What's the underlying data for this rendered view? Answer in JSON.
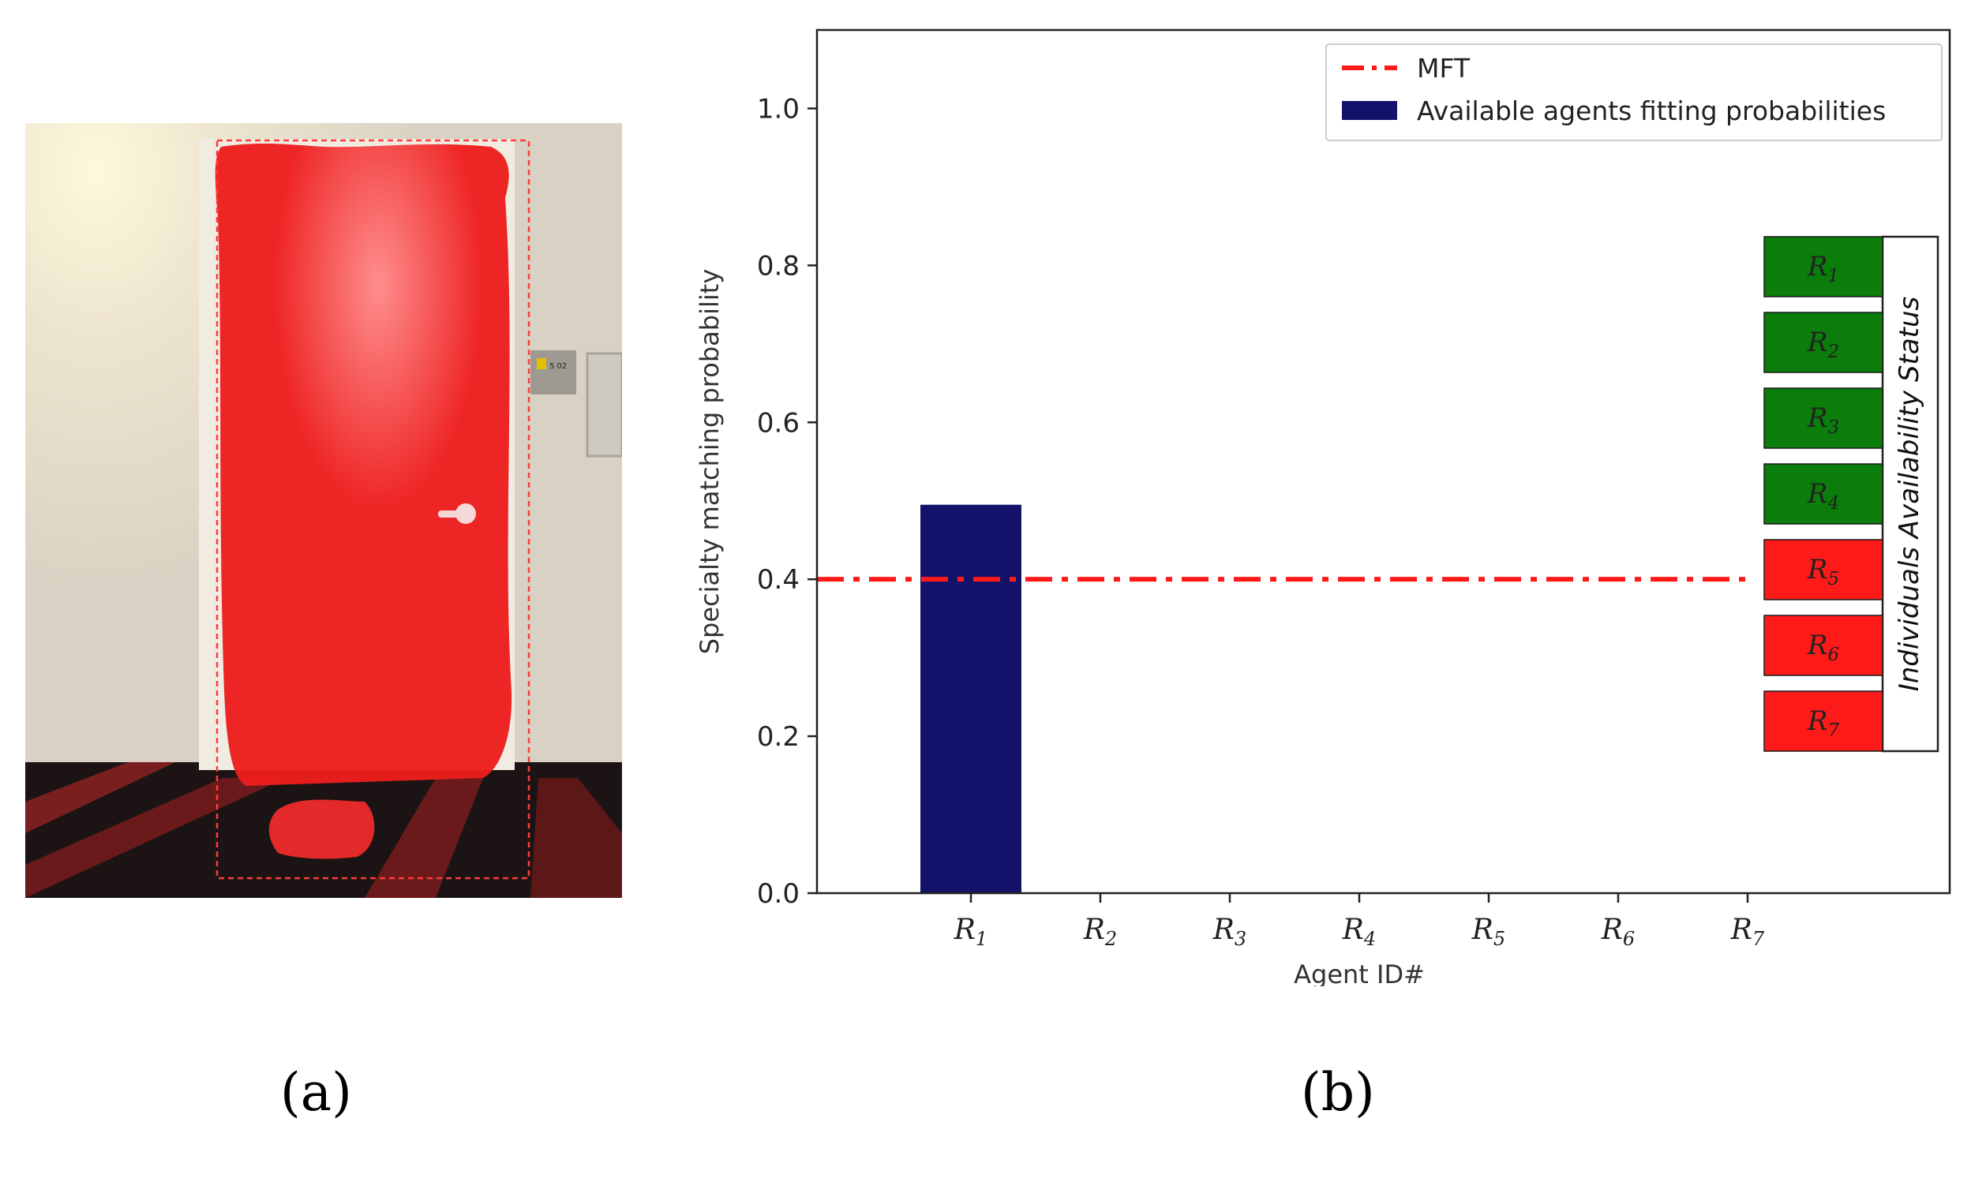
{
  "panels": {
    "a_label": "(a)",
    "b_label": "(b)"
  },
  "photo": {
    "door_sign_text": "5 02"
  },
  "chart_data": {
    "type": "bar",
    "categories": [
      "R1",
      "R2",
      "R3",
      "R4",
      "R5",
      "R6",
      "R7"
    ],
    "category_labels": [
      {
        "base": "R",
        "sub": "1"
      },
      {
        "base": "R",
        "sub": "2"
      },
      {
        "base": "R",
        "sub": "3"
      },
      {
        "base": "R",
        "sub": "4"
      },
      {
        "base": "R",
        "sub": "5"
      },
      {
        "base": "R",
        "sub": "6"
      },
      {
        "base": "R",
        "sub": "7"
      }
    ],
    "series": [
      {
        "name": "Available agents fitting probabilities",
        "values": [
          0.495,
          0,
          0,
          0,
          0,
          0,
          0
        ],
        "color": "#12126b"
      }
    ],
    "threshold": {
      "name": "MFT",
      "value": 0.4,
      "color": "#ff1a1a",
      "style": "dash-dot"
    },
    "xlabel": "Agent ID#",
    "ylabel": "Specialty matching probability",
    "ylim": [
      0,
      1.1
    ],
    "yticks": [
      0.0,
      0.2,
      0.4,
      0.6,
      0.8,
      1.0
    ],
    "grid": false,
    "legend_position": "top-right",
    "status_panel": {
      "title": "Individuals Availability Status",
      "items": [
        {
          "base": "R",
          "sub": "1",
          "status": "available",
          "color": "#0a7d0a"
        },
        {
          "base": "R",
          "sub": "2",
          "status": "available",
          "color": "#0a7d0a"
        },
        {
          "base": "R",
          "sub": "3",
          "status": "available",
          "color": "#0a7d0a"
        },
        {
          "base": "R",
          "sub": "4",
          "status": "available",
          "color": "#0a7d0a"
        },
        {
          "base": "R",
          "sub": "5",
          "status": "unavailable",
          "color": "#ff1a1a"
        },
        {
          "base": "R",
          "sub": "6",
          "status": "unavailable",
          "color": "#ff1a1a"
        },
        {
          "base": "R",
          "sub": "7",
          "status": "unavailable",
          "color": "#ff1a1a"
        }
      ]
    }
  }
}
